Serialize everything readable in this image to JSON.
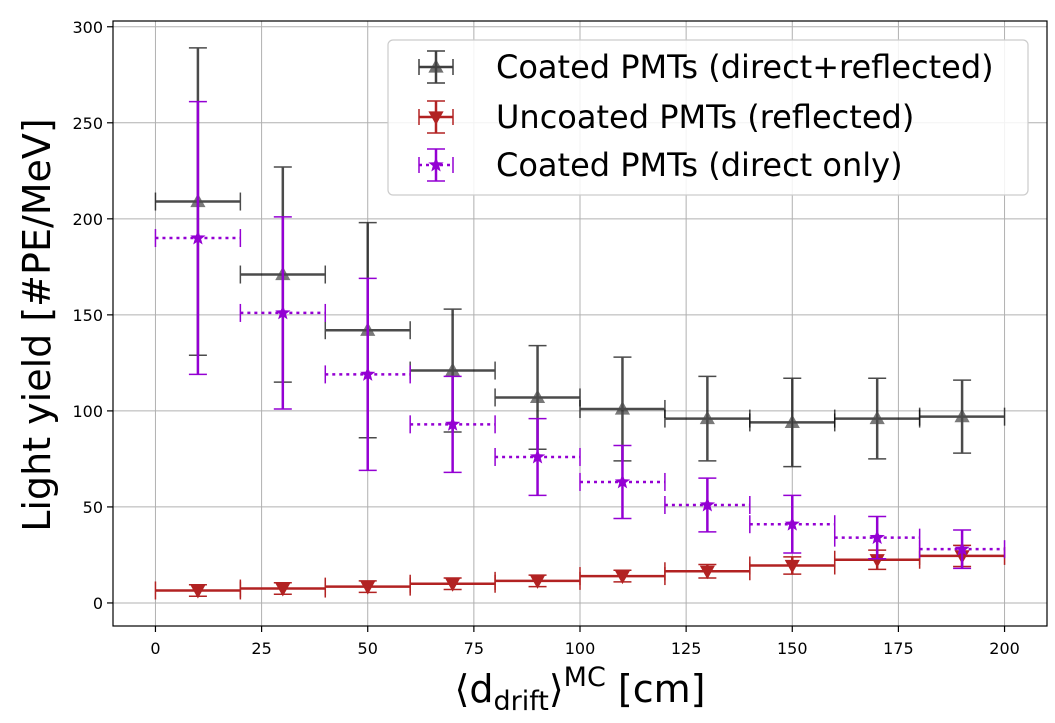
{
  "chart_data": {
    "type": "scatter",
    "xlabel": {
      "main": "⟨d",
      "sub": "drift",
      "close": "⟩",
      "sup": "MC",
      "unit": " [cm]"
    },
    "ylabel": "Light yield [#PE/MeV]",
    "xlim": [
      -10,
      210
    ],
    "ylim": [
      -12,
      303
    ],
    "xticks": [
      0,
      25,
      50,
      75,
      100,
      125,
      150,
      175,
      200
    ],
    "yticks": [
      0,
      50,
      100,
      150,
      200,
      250,
      300
    ],
    "grid": true,
    "legend_position": "top-right",
    "x_bin_halfwidth": 10,
    "series": [
      {
        "name": "Coated PMTs (direct+reflected)",
        "color": "#000000",
        "marker": "triangle-up",
        "linestyle": "solid",
        "x": [
          10,
          30,
          50,
          70,
          90,
          110,
          130,
          150,
          170,
          190
        ],
        "y": [
          209,
          171,
          142,
          121,
          107,
          101,
          96,
          94,
          96,
          97
        ],
        "yerr_low": [
          80,
          56,
          56,
          32,
          27,
          27,
          22,
          23,
          21,
          19
        ],
        "yerr_high": [
          80,
          56,
          56,
          32,
          27,
          27,
          22,
          23,
          21,
          19
        ]
      },
      {
        "name": "Uncoated PMTs (reflected)",
        "color": "#b22222",
        "marker": "triangle-down",
        "linestyle": "solid",
        "x": [
          10,
          30,
          50,
          70,
          90,
          110,
          130,
          150,
          170,
          190
        ],
        "y": [
          6.5,
          7.5,
          8.5,
          10,
          11.5,
          14,
          16.5,
          19.5,
          22.5,
          24.5
        ],
        "yerr_low": [
          3,
          3,
          3,
          3,
          3,
          3,
          3.5,
          4.5,
          5,
          5.5
        ],
        "yerr_high": [
          3,
          3,
          3,
          3,
          3,
          3,
          3.5,
          4.5,
          5,
          5.5
        ]
      },
      {
        "name": "Coated PMTs (direct only)",
        "color": "#9400d3",
        "marker": "star",
        "linestyle": "dotted",
        "x": [
          10,
          30,
          50,
          70,
          90,
          110,
          130,
          150,
          170,
          190
        ],
        "y": [
          190,
          151,
          119,
          93,
          76,
          63,
          51,
          41,
          34,
          28
        ],
        "yerr_low": [
          71,
          50,
          50,
          25,
          20,
          19,
          14,
          15,
          11,
          10
        ],
        "yerr_high": [
          71,
          50,
          50,
          25,
          20,
          19,
          14,
          15,
          11,
          10
        ]
      }
    ]
  }
}
